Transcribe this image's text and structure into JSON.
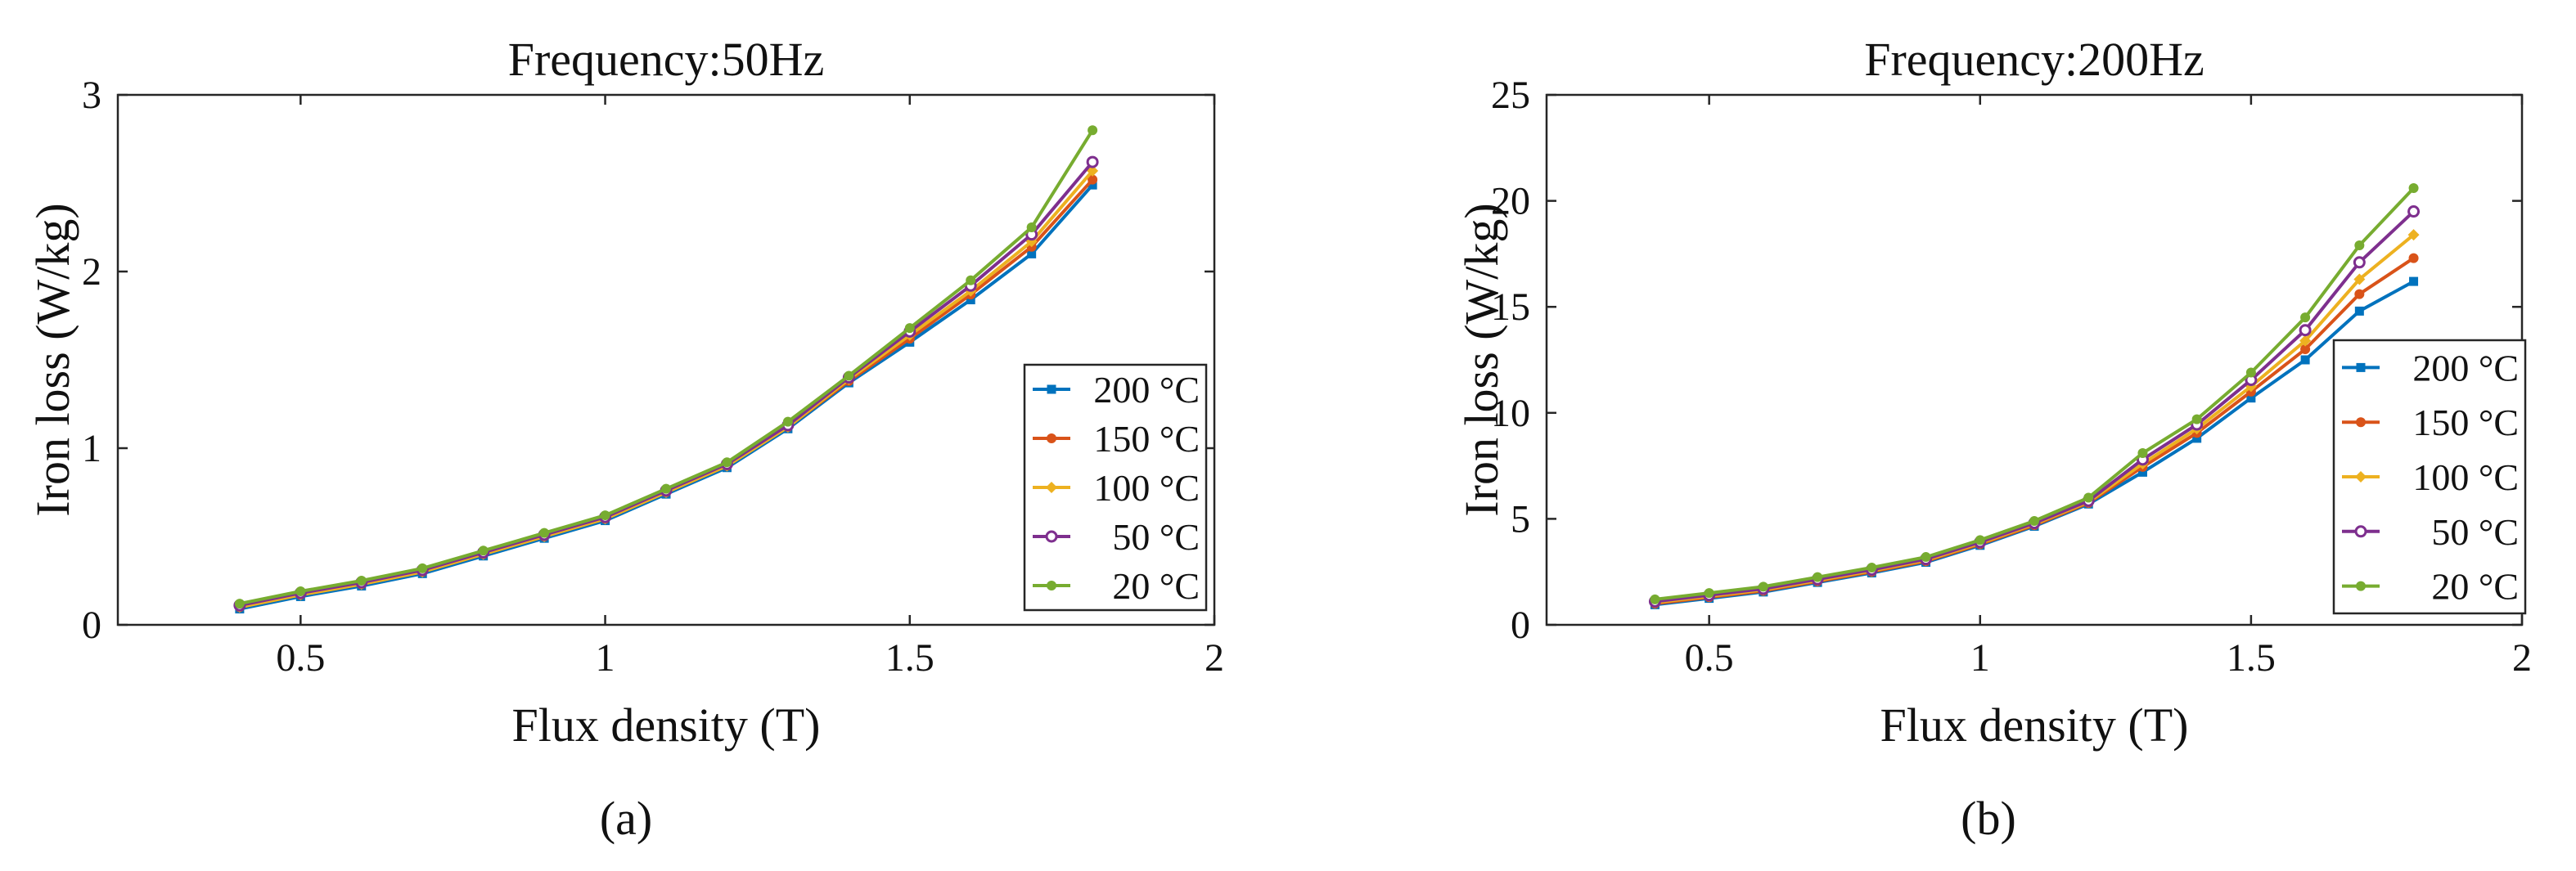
{
  "chart_data": [
    {
      "type": "line",
      "panel": "(a)",
      "title": "Frequency:50Hz",
      "xlabel": "Flux density (T)",
      "ylabel": "Iron loss (W/kg)",
      "xlim": [
        0.2,
        2
      ],
      "ylim": [
        0,
        3
      ],
      "xticks": [
        0.5,
        1,
        1.5,
        2
      ],
      "xtick_labels": [
        "0.5",
        "1",
        "1.5",
        "2"
      ],
      "yticks": [
        0,
        1,
        2,
        3
      ],
      "ytick_labels": [
        "0",
        "1",
        "2",
        "3"
      ],
      "legend_position": "bottom-right",
      "x": [
        0.4,
        0.5,
        0.6,
        0.7,
        0.8,
        0.9,
        1.0,
        1.1,
        1.2,
        1.3,
        1.4,
        1.5,
        1.6,
        1.7,
        1.8
      ],
      "series": [
        {
          "name": "200 °C",
          "color": "#0072BD",
          "marker": "square",
          "values": [
            0.09,
            0.16,
            0.22,
            0.29,
            0.39,
            0.49,
            0.59,
            0.74,
            0.89,
            1.11,
            1.37,
            1.6,
            1.84,
            2.1,
            2.49
          ]
        },
        {
          "name": "150 °C",
          "color": "#D95319",
          "marker": "circle",
          "values": [
            0.1,
            0.17,
            0.23,
            0.3,
            0.4,
            0.5,
            0.6,
            0.75,
            0.9,
            1.12,
            1.38,
            1.62,
            1.87,
            2.14,
            2.52
          ]
        },
        {
          "name": "100 °C",
          "color": "#EDB120",
          "marker": "diamond",
          "values": [
            0.1,
            0.17,
            0.23,
            0.3,
            0.4,
            0.5,
            0.6,
            0.75,
            0.9,
            1.12,
            1.39,
            1.64,
            1.89,
            2.17,
            2.57
          ]
        },
        {
          "name": "50 °C",
          "color": "#7E2F8E",
          "marker": "open-circle",
          "values": [
            0.11,
            0.18,
            0.24,
            0.31,
            0.41,
            0.51,
            0.61,
            0.76,
            0.91,
            1.13,
            1.4,
            1.66,
            1.92,
            2.21,
            2.62
          ]
        },
        {
          "name": "20 °C",
          "color": "#77AC30",
          "marker": "circle",
          "values": [
            0.12,
            0.19,
            0.25,
            0.32,
            0.42,
            0.52,
            0.62,
            0.77,
            0.92,
            1.15,
            1.41,
            1.68,
            1.95,
            2.25,
            2.8
          ]
        }
      ]
    },
    {
      "type": "line",
      "panel": "(b)",
      "title": "Frequency:200Hz",
      "xlabel": "Flux density (T)",
      "ylabel": "Iron loss (W/kg)",
      "xlim": [
        0.2,
        2
      ],
      "ylim": [
        0,
        25
      ],
      "xticks": [
        0.5,
        1,
        1.5,
        2
      ],
      "xtick_labels": [
        "0.5",
        "1",
        "1.5",
        "2"
      ],
      "yticks": [
        0,
        5,
        10,
        15,
        20,
        25
      ],
      "ytick_labels": [
        "0",
        "5",
        "10",
        "15",
        "20",
        "25"
      ],
      "legend_position": "right",
      "x": [
        0.4,
        0.5,
        0.6,
        0.7,
        0.8,
        0.9,
        1.0,
        1.1,
        1.2,
        1.3,
        1.4,
        1.5,
        1.6,
        1.7,
        1.8
      ],
      "series": [
        {
          "name": "200 °C",
          "color": "#0072BD",
          "marker": "square",
          "values": [
            0.95,
            1.25,
            1.55,
            2.0,
            2.45,
            2.95,
            3.75,
            4.65,
            5.7,
            7.2,
            8.8,
            10.7,
            12.5,
            14.8,
            16.2
          ]
        },
        {
          "name": "150 °C",
          "color": "#D95319",
          "marker": "circle",
          "values": [
            1.0,
            1.3,
            1.6,
            2.05,
            2.5,
            3.0,
            3.8,
            4.7,
            5.75,
            7.45,
            9.05,
            11.0,
            13.0,
            15.6,
            17.3
          ]
        },
        {
          "name": "100 °C",
          "color": "#EDB120",
          "marker": "diamond",
          "values": [
            1.05,
            1.35,
            1.65,
            2.1,
            2.55,
            3.05,
            3.85,
            4.75,
            5.8,
            7.6,
            9.25,
            11.25,
            13.4,
            16.3,
            18.4
          ]
        },
        {
          "name": "50 °C",
          "color": "#7E2F8E",
          "marker": "open-circle",
          "values": [
            1.1,
            1.4,
            1.7,
            2.15,
            2.6,
            3.1,
            3.9,
            4.8,
            5.85,
            7.8,
            9.45,
            11.55,
            13.9,
            17.1,
            19.5
          ]
        },
        {
          "name": "20 °C",
          "color": "#77AC30",
          "marker": "circle",
          "values": [
            1.2,
            1.5,
            1.8,
            2.25,
            2.7,
            3.2,
            4.0,
            4.9,
            6.0,
            8.1,
            9.7,
            11.9,
            14.5,
            17.9,
            20.6
          ]
        }
      ]
    }
  ]
}
